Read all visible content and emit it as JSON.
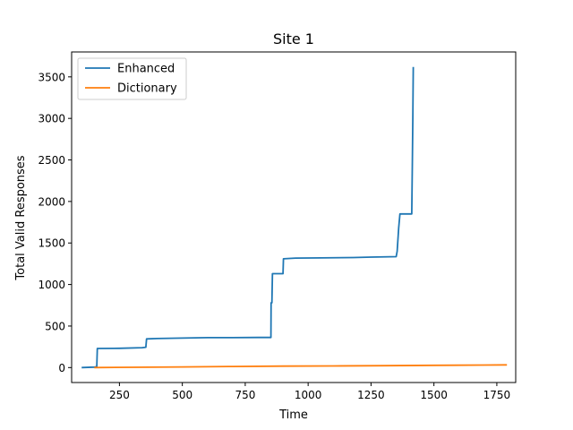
{
  "chart_data": {
    "type": "line",
    "title": "Site 1",
    "xlabel": "Time",
    "ylabel": "Total Valid Responses",
    "xlim": [
      60,
      1825
    ],
    "ylim": [
      -180,
      3800
    ],
    "xticks": [
      250,
      500,
      750,
      1000,
      1250,
      1500,
      1750
    ],
    "yticks": [
      0,
      500,
      1000,
      1500,
      2000,
      2500,
      3000,
      3500
    ],
    "grid": false,
    "legend_position": "upper-left",
    "series": [
      {
        "name": "Enhanced",
        "color": "#1f77b4",
        "points": [
          [
            100,
            0
          ],
          [
            150,
            5
          ],
          [
            160,
            10
          ],
          [
            162,
            230
          ],
          [
            250,
            232
          ],
          [
            340,
            240
          ],
          [
            355,
            245
          ],
          [
            358,
            345
          ],
          [
            400,
            350
          ],
          [
            500,
            355
          ],
          [
            600,
            360
          ],
          [
            700,
            360
          ],
          [
            800,
            362
          ],
          [
            852,
            362
          ],
          [
            853,
            780
          ],
          [
            856,
            780
          ],
          [
            858,
            1130
          ],
          [
            900,
            1130
          ],
          [
            902,
            1310
          ],
          [
            950,
            1318
          ],
          [
            1050,
            1320
          ],
          [
            1180,
            1325
          ],
          [
            1250,
            1330
          ],
          [
            1350,
            1335
          ],
          [
            1354,
            1400
          ],
          [
            1360,
            1680
          ],
          [
            1365,
            1850
          ],
          [
            1380,
            1850
          ],
          [
            1412,
            1850
          ],
          [
            1414,
            2400
          ],
          [
            1416,
            3000
          ],
          [
            1418,
            3620
          ]
        ]
      },
      {
        "name": "Dictionary",
        "color": "#ff7f0e",
        "points": [
          [
            150,
            0
          ],
          [
            300,
            3
          ],
          [
            500,
            8
          ],
          [
            700,
            13
          ],
          [
            900,
            17
          ],
          [
            1100,
            20
          ],
          [
            1300,
            23
          ],
          [
            1500,
            27
          ],
          [
            1700,
            30
          ],
          [
            1790,
            32
          ]
        ]
      }
    ]
  }
}
